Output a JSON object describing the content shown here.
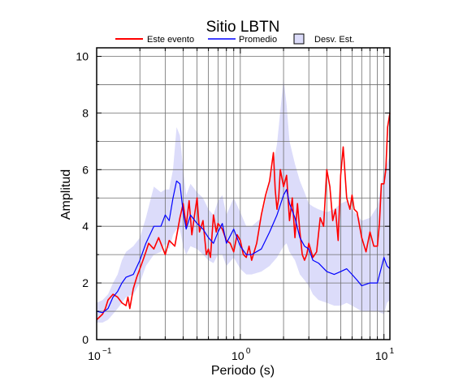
{
  "chart_data": {
    "type": "line",
    "title": "Sitio LBTN",
    "xlabel": "Periodo (s)",
    "ylabel": "Amplitud",
    "x_scale": "log",
    "xlim": [
      0.1,
      11
    ],
    "ylim": [
      0,
      10.3
    ],
    "y_ticks": [
      "0",
      "2",
      "4",
      "6",
      "8",
      "10"
    ],
    "x_ticks": [
      {
        "value": 0.1,
        "base": "10",
        "exp": "−1"
      },
      {
        "value": 1,
        "base": "10",
        "exp": "0"
      },
      {
        "value": 10,
        "base": "10",
        "exp": "1"
      }
    ],
    "grid": true,
    "legend": {
      "placement": "top",
      "items": [
        "Este evento",
        "Promedio",
        "Desv. Est."
      ]
    },
    "colors": {
      "event": "#ff0000",
      "mean": "#0000ff",
      "band": "#dcdcfa"
    },
    "series": [
      {
        "name": "Este evento",
        "x": [
          0.1,
          0.105,
          0.11,
          0.115,
          0.12,
          0.13,
          0.14,
          0.15,
          0.16,
          0.165,
          0.17,
          0.18,
          0.19,
          0.2,
          0.21,
          0.22,
          0.23,
          0.25,
          0.27,
          0.3,
          0.32,
          0.35,
          0.38,
          0.4,
          0.42,
          0.44,
          0.46,
          0.48,
          0.5,
          0.52,
          0.55,
          0.58,
          0.6,
          0.62,
          0.65,
          0.68,
          0.7,
          0.75,
          0.8,
          0.85,
          0.9,
          0.95,
          1.0,
          1.05,
          1.1,
          1.15,
          1.2,
          1.3,
          1.4,
          1.5,
          1.6,
          1.7,
          1.75,
          1.8,
          1.85,
          1.9,
          2.0,
          2.1,
          2.2,
          2.3,
          2.4,
          2.5,
          2.6,
          2.7,
          2.8,
          2.9,
          3.0,
          3.2,
          3.4,
          3.6,
          3.8,
          4.0,
          4.2,
          4.4,
          4.6,
          4.8,
          5.0,
          5.2,
          5.5,
          5.8,
          6.0,
          6.2,
          6.5,
          7.0,
          7.5,
          8.0,
          8.5,
          9.0,
          9.3,
          9.6,
          10.0,
          10.3,
          10.6,
          11.0
        ],
        "y": [
          0.7,
          0.8,
          0.9,
          1.1,
          1.4,
          1.6,
          1.5,
          1.3,
          1.2,
          1.5,
          1.1,
          1.8,
          2.2,
          2.5,
          2.8,
          3.1,
          3.4,
          3.2,
          3.6,
          3.0,
          3.5,
          3.3,
          4.3,
          4.8,
          4.0,
          4.9,
          3.7,
          4.4,
          5.0,
          3.8,
          4.2,
          3.0,
          3.2,
          2.9,
          4.4,
          3.8,
          4.1,
          3.9,
          3.5,
          3.4,
          3.1,
          3.7,
          3.5,
          3.0,
          2.9,
          3.3,
          2.8,
          3.4,
          4.4,
          5.1,
          5.6,
          6.6,
          5.3,
          4.6,
          5.0,
          6.0,
          5.4,
          5.8,
          4.2,
          5.0,
          3.6,
          4.8,
          3.8,
          3.0,
          2.8,
          3.0,
          3.4,
          2.9,
          3.1,
          4.3,
          4.0,
          6.0,
          5.4,
          4.2,
          4.6,
          3.5,
          5.8,
          6.8,
          5.0,
          4.6,
          5.1,
          4.6,
          4.5,
          3.6,
          3.1,
          3.8,
          3.3,
          3.3,
          4.1,
          5.5,
          5.5,
          6.0,
          7.5,
          8.0
        ]
      },
      {
        "name": "Promedio",
        "x": [
          0.1,
          0.11,
          0.12,
          0.13,
          0.14,
          0.15,
          0.16,
          0.18,
          0.2,
          0.22,
          0.25,
          0.28,
          0.3,
          0.32,
          0.34,
          0.36,
          0.38,
          0.4,
          0.42,
          0.45,
          0.5,
          0.55,
          0.6,
          0.65,
          0.7,
          0.75,
          0.8,
          0.9,
          1.0,
          1.1,
          1.2,
          1.4,
          1.6,
          1.8,
          2.0,
          2.1,
          2.2,
          2.4,
          2.6,
          2.8,
          3.0,
          3.2,
          3.5,
          4.0,
          4.5,
          5.0,
          5.5,
          6.0,
          6.5,
          7.0,
          8.0,
          9.0,
          10.0,
          10.5,
          11.0
        ],
        "y": [
          1.0,
          0.95,
          1.1,
          1.5,
          1.7,
          2.0,
          2.2,
          2.3,
          2.8,
          3.4,
          4.0,
          4.0,
          4.4,
          4.2,
          5.0,
          5.6,
          5.5,
          4.5,
          3.9,
          4.4,
          4.1,
          3.9,
          3.6,
          3.4,
          3.8,
          4.1,
          3.4,
          3.9,
          3.3,
          3.0,
          3.0,
          3.2,
          3.8,
          4.4,
          5.1,
          5.3,
          4.8,
          4.3,
          3.6,
          3.3,
          3.2,
          2.8,
          2.7,
          2.4,
          2.3,
          2.4,
          2.5,
          2.3,
          2.1,
          1.9,
          2.0,
          2.0,
          2.9,
          2.6,
          2.5
        ]
      },
      {
        "name": "Desv. Est.",
        "x": [
          0.1,
          0.11,
          0.12,
          0.13,
          0.14,
          0.15,
          0.16,
          0.18,
          0.2,
          0.22,
          0.25,
          0.28,
          0.3,
          0.32,
          0.34,
          0.36,
          0.38,
          0.4,
          0.42,
          0.45,
          0.5,
          0.55,
          0.6,
          0.65,
          0.7,
          0.75,
          0.8,
          0.9,
          1.0,
          1.1,
          1.2,
          1.4,
          1.6,
          1.8,
          2.0,
          2.1,
          2.2,
          2.4,
          2.6,
          2.8,
          3.0,
          3.2,
          3.5,
          4.0,
          4.5,
          5.0,
          5.5,
          6.0,
          6.5,
          7.0,
          8.0,
          9.0,
          10.0,
          10.5,
          11.0
        ],
        "lower": [
          0.6,
          0.6,
          0.7,
          0.9,
          1.1,
          1.3,
          1.5,
          1.6,
          2.0,
          2.6,
          3.0,
          3.1,
          3.4,
          3.2,
          3.7,
          3.9,
          3.9,
          3.3,
          3.0,
          3.3,
          3.2,
          3.0,
          2.8,
          2.7,
          3.0,
          3.0,
          2.6,
          2.9,
          2.5,
          2.3,
          2.3,
          2.4,
          2.6,
          2.9,
          3.3,
          3.4,
          3.1,
          2.8,
          2.3,
          2.1,
          1.9,
          1.6,
          1.4,
          1.3,
          1.2,
          1.2,
          1.3,
          1.2,
          1.1,
          1.0,
          1.0,
          1.0,
          0.9,
          1.3,
          1.4
        ],
        "upper": [
          1.3,
          1.4,
          1.6,
          2.0,
          2.3,
          2.8,
          3.1,
          3.3,
          3.6,
          4.3,
          5.4,
          5.2,
          5.3,
          5.3,
          6.0,
          7.5,
          7.2,
          6.0,
          5.1,
          5.5,
          5.2,
          5.0,
          4.6,
          4.4,
          4.9,
          5.1,
          4.4,
          5.0,
          4.5,
          4.0,
          4.0,
          4.3,
          5.5,
          6.9,
          9.2,
          8.3,
          7.0,
          6.2,
          5.6,
          5.2,
          4.8,
          4.7,
          4.6,
          4.5,
          4.6,
          4.8,
          4.9,
          4.6,
          4.4,
          4.2,
          4.3,
          4.7,
          6.0,
          6.2,
          6.5
        ]
      }
    ]
  }
}
